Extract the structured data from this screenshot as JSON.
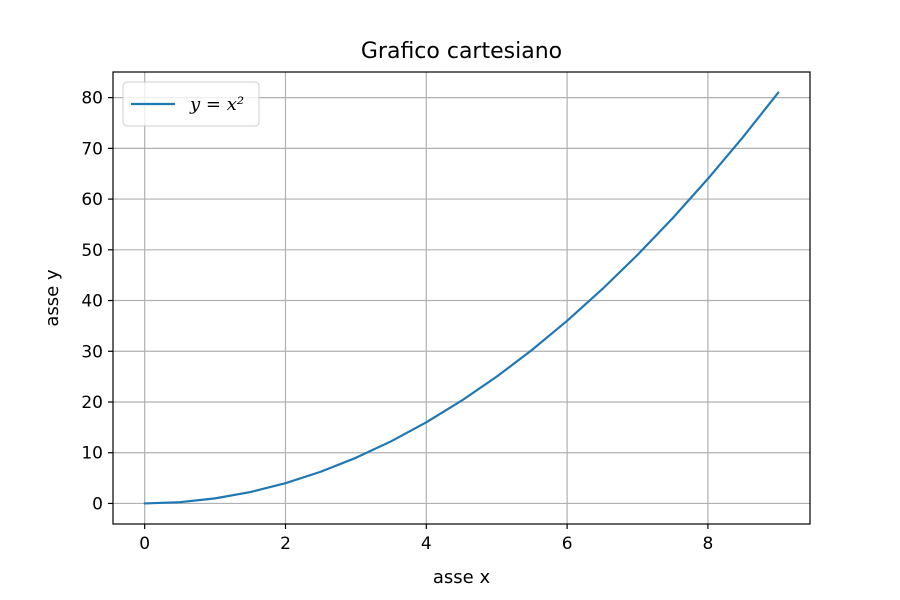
{
  "chart_data": {
    "type": "line",
    "title": "Grafico cartesiano",
    "xlabel": "asse x",
    "ylabel": "asse y",
    "xlim": [
      -0.45,
      9.45
    ],
    "ylim": [
      -4.05,
      85.05
    ],
    "xticks": [
      0,
      2,
      4,
      6,
      8
    ],
    "xtick_labels": [
      "0",
      "2",
      "4",
      "6",
      "8"
    ],
    "yticks": [
      0,
      10,
      20,
      30,
      40,
      50,
      60,
      70,
      80
    ],
    "ytick_labels": [
      "0",
      "10",
      "20",
      "30",
      "40",
      "50",
      "60",
      "70",
      "80"
    ],
    "grid": true,
    "legend_position": "top-left",
    "series": [
      {
        "name": "y = x²",
        "color": "#1f77b4",
        "x": [
          0,
          0.5,
          1,
          1.5,
          2,
          2.5,
          3,
          3.5,
          4,
          4.5,
          5,
          5.5,
          6,
          6.5,
          7,
          7.5,
          8,
          8.5,
          9
        ],
        "y": [
          0,
          0.25,
          1,
          2.25,
          4,
          6.25,
          9,
          12.25,
          16,
          20.25,
          25,
          30.25,
          36,
          42.25,
          49,
          56.25,
          64,
          72.25,
          81
        ]
      }
    ]
  }
}
